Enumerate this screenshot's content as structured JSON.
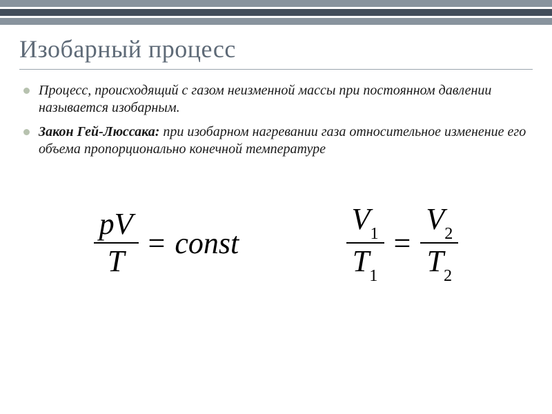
{
  "topBars": {
    "light": "#88939d",
    "dark": "#424d5a"
  },
  "heading": {
    "text": "Изобарный процесс",
    "color": "#5e6a77",
    "fontsize": 36
  },
  "bullets": [
    {
      "text": "Процесс, происходящий с газом неизменной массы при  постоянном давлении называется изобарным."
    },
    {
      "law_label": "Закон Гей-Люссака:",
      "text": " при изобарном нагревании газа относительное изменение его объема пропорционально конечной температуре"
    }
  ],
  "bullet_color": "#b7c2af",
  "divider_color": "#9aa4ad",
  "equations": {
    "fontsize": 44,
    "left": {
      "numerator": "pV",
      "denominator": "T",
      "equals": "=",
      "rhs": "const"
    },
    "right": {
      "frac1_num_var": "V",
      "frac1_num_sub": "1",
      "frac1_den_var": "T",
      "frac1_den_sub": "1",
      "equals": "=",
      "frac2_num_var": "V",
      "frac2_num_sub": "2",
      "frac2_den_var": "T",
      "frac2_den_sub": "2"
    }
  }
}
